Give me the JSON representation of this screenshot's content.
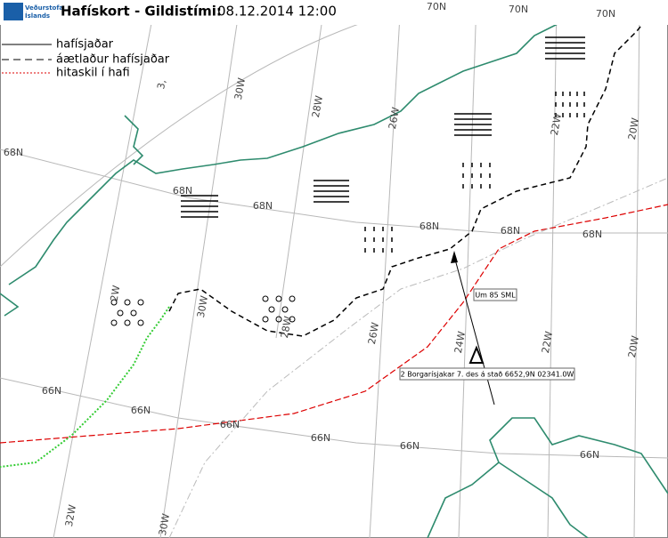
{
  "header": {
    "logo": [
      "Veðurstofa",
      "Íslands"
    ],
    "title": "Hafískort - Gildistími:",
    "time": "08.12.2014 12:00"
  },
  "legend": {
    "items": [
      "hafísjaðar",
      "áætlaður hafísjaðar",
      "hitaskil í hafi"
    ]
  },
  "grid_labels": [
    "70N",
    "70N",
    "70N",
    "68N",
    "68N",
    "68N",
    "68N",
    "68N",
    "68N",
    "66N",
    "66N",
    "66N",
    "66N",
    "66N",
    "66N",
    "3,",
    "30W",
    "28W",
    "26W",
    "22W",
    "20W",
    "2W",
    "30W",
    "28W",
    "26W",
    "24W",
    "22W",
    "20W",
    "32W",
    "30W"
  ],
  "annotations": [
    "Um 85 SML",
    "2 Borgarísjakar 7. des á stað 6652,9N 02341.0W"
  ]
}
